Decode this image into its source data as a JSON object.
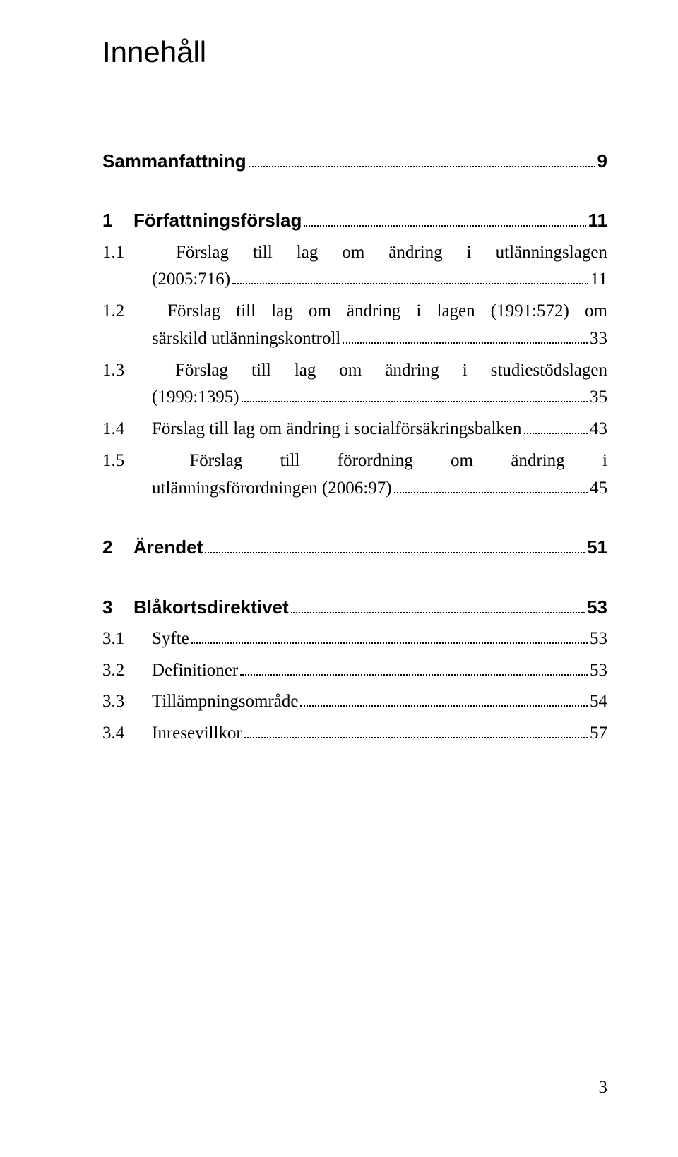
{
  "title": "Innehåll",
  "sec_summary": {
    "label": "Sammanfattning",
    "page": "9"
  },
  "sec1": {
    "num": "1",
    "label": "Författningsförslag",
    "page": "11",
    "s1": {
      "num": "1.1",
      "l1a": "Förslag",
      "l1b": "till",
      "l1c": "lag",
      "l1d": "om",
      "l1e": "ändring",
      "l1f": "i",
      "l1g": "utlänningslagen",
      "l2": "(2005:716)",
      "page": "11"
    },
    "s2": {
      "num": "1.2",
      "l1a": "Förslag",
      "l1b": "till",
      "l1c": "lag",
      "l1d": "om",
      "l1e": "ändring",
      "l1f": "i",
      "l1g": "lagen",
      "l1h": "(1991:572)",
      "l1i": "om",
      "l2": "särskild utlänningskontroll",
      "page": "33"
    },
    "s3": {
      "num": "1.3",
      "l1a": "Förslag",
      "l1b": "till",
      "l1c": "lag",
      "l1d": "om",
      "l1e": "ändring",
      "l1f": "i",
      "l1g": "studiestödslagen",
      "l2": "(1999:1395)",
      "page": "35"
    },
    "s4": {
      "num": "1.4",
      "label": "Förslag till lag om ändring i socialförsäkringsbalken",
      "page": "43"
    },
    "s5": {
      "num": "1.5",
      "l1a": "Förslag",
      "l1b": "till",
      "l1c": "förordning",
      "l1d": "om",
      "l1e": "ändring",
      "l1f": "i",
      "l2": "utlänningsförordningen (2006:97)",
      "page": "45"
    }
  },
  "sec2": {
    "num": "2",
    "label": "Ärendet",
    "page": "51"
  },
  "sec3": {
    "num": "3",
    "label": "Blåkortsdirektivet",
    "page": "53",
    "s1": {
      "num": "3.1",
      "label": "Syfte",
      "page": "53"
    },
    "s2": {
      "num": "3.2",
      "label": "Definitioner",
      "page": "53"
    },
    "s3": {
      "num": "3.3",
      "label": "Tillämpningsområde",
      "page": "54"
    },
    "s4": {
      "num": "3.4",
      "label": "Inresevillkor",
      "page": "57"
    }
  },
  "page_number": "3"
}
